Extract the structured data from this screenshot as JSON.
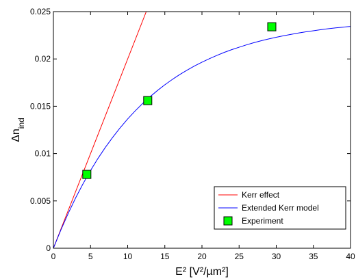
{
  "chart_data": {
    "type": "line",
    "xlabel": "E² [V²/µm²]",
    "ylabel": "Δn_ind",
    "xlim": [
      0,
      40
    ],
    "ylim": [
      0,
      0.025
    ],
    "xticks": [
      0,
      5,
      10,
      15,
      20,
      25,
      30,
      35,
      40
    ],
    "yticks": [
      0,
      0.005,
      0.01,
      0.015,
      0.02,
      0.025
    ],
    "xtick_labels": [
      "0",
      "5",
      "10",
      "15",
      "20",
      "25",
      "30",
      "35",
      "40"
    ],
    "ytick_labels": [
      "0",
      "0.005",
      "0.01",
      "0.015",
      "0.02",
      "0.025"
    ],
    "grid": false,
    "legend_position": "bottom-right",
    "series": [
      {
        "name": "Kerr effect",
        "kind": "line",
        "color": "#ff0000",
        "x": [
          0,
          12.5
        ],
        "y": [
          0,
          0.025
        ]
      },
      {
        "name": "Extended Kerr model",
        "kind": "line",
        "color": "#0000ff",
        "x": [
          0,
          1,
          2,
          3,
          4,
          5,
          6,
          7,
          8,
          9,
          10,
          11,
          12,
          13,
          14,
          15,
          16,
          17,
          18,
          19,
          20,
          21,
          22,
          23,
          24,
          25,
          26,
          27,
          28,
          29,
          30,
          31,
          32,
          33,
          34,
          35,
          36,
          37,
          38,
          39,
          40
        ],
        "y": [
          0,
          0.00192,
          0.00369,
          0.00533,
          0.00683,
          0.00821,
          0.00949,
          0.01066,
          0.01174,
          0.01274,
          0.01366,
          0.0145,
          0.01528,
          0.016,
          0.01666,
          0.01727,
          0.01783,
          0.01835,
          0.01882,
          0.01926,
          0.01966,
          0.02003,
          0.02037,
          0.02069,
          0.02098,
          0.02124,
          0.02149,
          0.02172,
          0.02193,
          0.02212,
          0.02229,
          0.02245,
          0.0226,
          0.02274,
          0.02287,
          0.02298,
          0.02309,
          0.02319,
          0.02328,
          0.02336,
          0.02344
        ]
      },
      {
        "name": "Experiment",
        "kind": "scatter",
        "color": "#00ff00",
        "x": [
          4.5,
          12.7,
          29.4
        ],
        "y": [
          0.0078,
          0.0156,
          0.0234
        ]
      }
    ]
  }
}
